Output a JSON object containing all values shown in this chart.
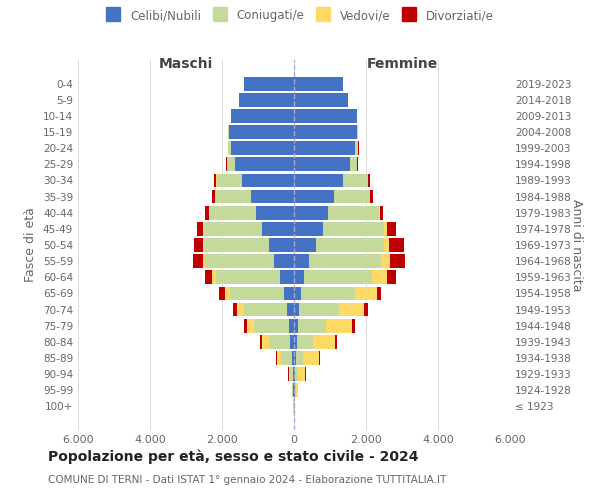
{
  "age_groups": [
    "100+",
    "95-99",
    "90-94",
    "85-89",
    "80-84",
    "75-79",
    "70-74",
    "65-69",
    "60-64",
    "55-59",
    "50-54",
    "45-49",
    "40-44",
    "35-39",
    "30-34",
    "25-29",
    "20-24",
    "15-19",
    "10-14",
    "5-9",
    "0-4"
  ],
  "birth_years": [
    "≤ 1923",
    "1924-1928",
    "1929-1933",
    "1934-1938",
    "1939-1943",
    "1944-1948",
    "1949-1953",
    "1954-1958",
    "1959-1963",
    "1964-1968",
    "1969-1973",
    "1974-1978",
    "1979-1983",
    "1984-1988",
    "1989-1993",
    "1994-1998",
    "1999-2003",
    "2004-2008",
    "2009-2013",
    "2014-2018",
    "2019-2023"
  ],
  "males": {
    "celibi": [
      10,
      20,
      30,
      60,
      100,
      150,
      200,
      280,
      380,
      560,
      700,
      900,
      1050,
      1200,
      1450,
      1650,
      1750,
      1800,
      1750,
      1520,
      1380
    ],
    "coniugati": [
      5,
      30,
      80,
      300,
      600,
      950,
      1200,
      1500,
      1800,
      1900,
      1800,
      1600,
      1300,
      1000,
      700,
      200,
      80,
      30,
      10,
      5,
      5
    ],
    "vedovi": [
      2,
      10,
      40,
      120,
      200,
      200,
      180,
      150,
      100,
      60,
      40,
      20,
      10,
      5,
      5,
      2,
      2,
      1,
      1,
      0,
      0
    ],
    "divorziati": [
      1,
      5,
      10,
      30,
      50,
      100,
      120,
      150,
      200,
      280,
      250,
      180,
      100,
      80,
      60,
      30,
      10,
      5,
      2,
      1,
      1
    ]
  },
  "females": {
    "nubili": [
      10,
      20,
      30,
      50,
      80,
      100,
      140,
      200,
      280,
      420,
      600,
      800,
      950,
      1100,
      1350,
      1550,
      1700,
      1750,
      1750,
      1500,
      1350
    ],
    "coniugate": [
      5,
      30,
      80,
      200,
      450,
      800,
      1100,
      1500,
      1900,
      2000,
      1900,
      1700,
      1400,
      1000,
      700,
      200,
      80,
      30,
      10,
      5,
      5
    ],
    "vedove": [
      10,
      50,
      200,
      450,
      600,
      700,
      700,
      600,
      400,
      250,
      150,
      80,
      30,
      15,
      10,
      5,
      2,
      1,
      1,
      0,
      0
    ],
    "divorziate": [
      1,
      5,
      10,
      30,
      60,
      100,
      120,
      130,
      250,
      400,
      400,
      250,
      100,
      80,
      50,
      20,
      10,
      5,
      2,
      1,
      1
    ]
  },
  "colors": {
    "celibi": "#4472C4",
    "coniugati": "#C5D99A",
    "vedovi": "#FFD966",
    "divorziati": "#C00000"
  },
  "xlim": 6000,
  "title": "Popolazione per età, sesso e stato civile - 2024",
  "subtitle1": "COMUNE DI TERNI",
  "subtitle2": "Dati ISTAT 1° gennaio 2024 - Elaborazione TUTTITALIA.IT",
  "ylabel_left": "Fasce di età",
  "ylabel_right": "Anni di nascita",
  "xlabel_left": "Maschi",
  "xlabel_right": "Femmine",
  "background_color": "#ffffff",
  "grid_color": "#cccccc",
  "text_color": "#666666"
}
